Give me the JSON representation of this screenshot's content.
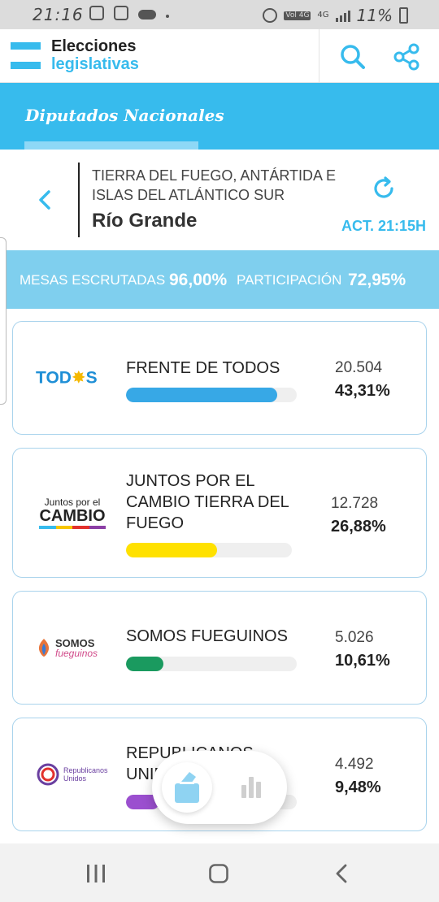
{
  "status_bar": {
    "time": "21:16",
    "battery": "11%",
    "network": "4G",
    "volte": "Vol 4G"
  },
  "header": {
    "title_line1": "Elecciones",
    "title_line2": "legislativas"
  },
  "category": {
    "title": "Diputados Nacionales"
  },
  "location": {
    "region": "TIERRA DEL FUEGO, ANTÁRTIDA E ISLAS DEL ATLÁNTICO SUR",
    "city": "Río Grande",
    "updated": "ACT. 21:15H"
  },
  "stats": {
    "mesas_label": "MESAS ESCRUTADAS",
    "mesas_value": "96,00%",
    "participacion_label": "PARTICIPACIÓN",
    "participacion_value": "72,95%"
  },
  "results": [
    {
      "name": "FRENTE DE TODOS",
      "votes": "20.504",
      "percent": "43,31%",
      "share": 0.4331,
      "color": "#37a8e6",
      "logo": "TODOS"
    },
    {
      "name": "JUNTOS POR EL CAMBIO TIERRA DEL FUEGO",
      "votes": "12.728",
      "percent": "26,88%",
      "share": 0.2688,
      "color": "#ffe100",
      "logo_line1": "Juntos por el",
      "logo_line2": "CAMBIO"
    },
    {
      "name": "SOMOS FUEGUINOS",
      "votes": "5.026",
      "percent": "10,61%",
      "share": 0.1061,
      "color": "#1a9a5f",
      "logo_line1": "SOMOS",
      "logo_line2": "fueguinos"
    },
    {
      "name": "REPUBLICANOS UNIDOS",
      "votes": "4.492",
      "percent": "9,48%",
      "share": 0.0948,
      "color": "#9b4fcf",
      "logo_line1": "Republicanos",
      "logo_line2": "Unidos"
    }
  ],
  "colors": {
    "accent": "#37bbed",
    "stats_band": "#7fcfee"
  },
  "icons": {
    "header": [
      "search-icon",
      "share-icon"
    ],
    "location": [
      "chevron-left-icon",
      "refresh-icon"
    ],
    "floating": [
      "ballot-box-icon",
      "bar-chart-icon"
    ],
    "nav": [
      "recent-apps-icon",
      "home-icon",
      "back-icon"
    ]
  }
}
